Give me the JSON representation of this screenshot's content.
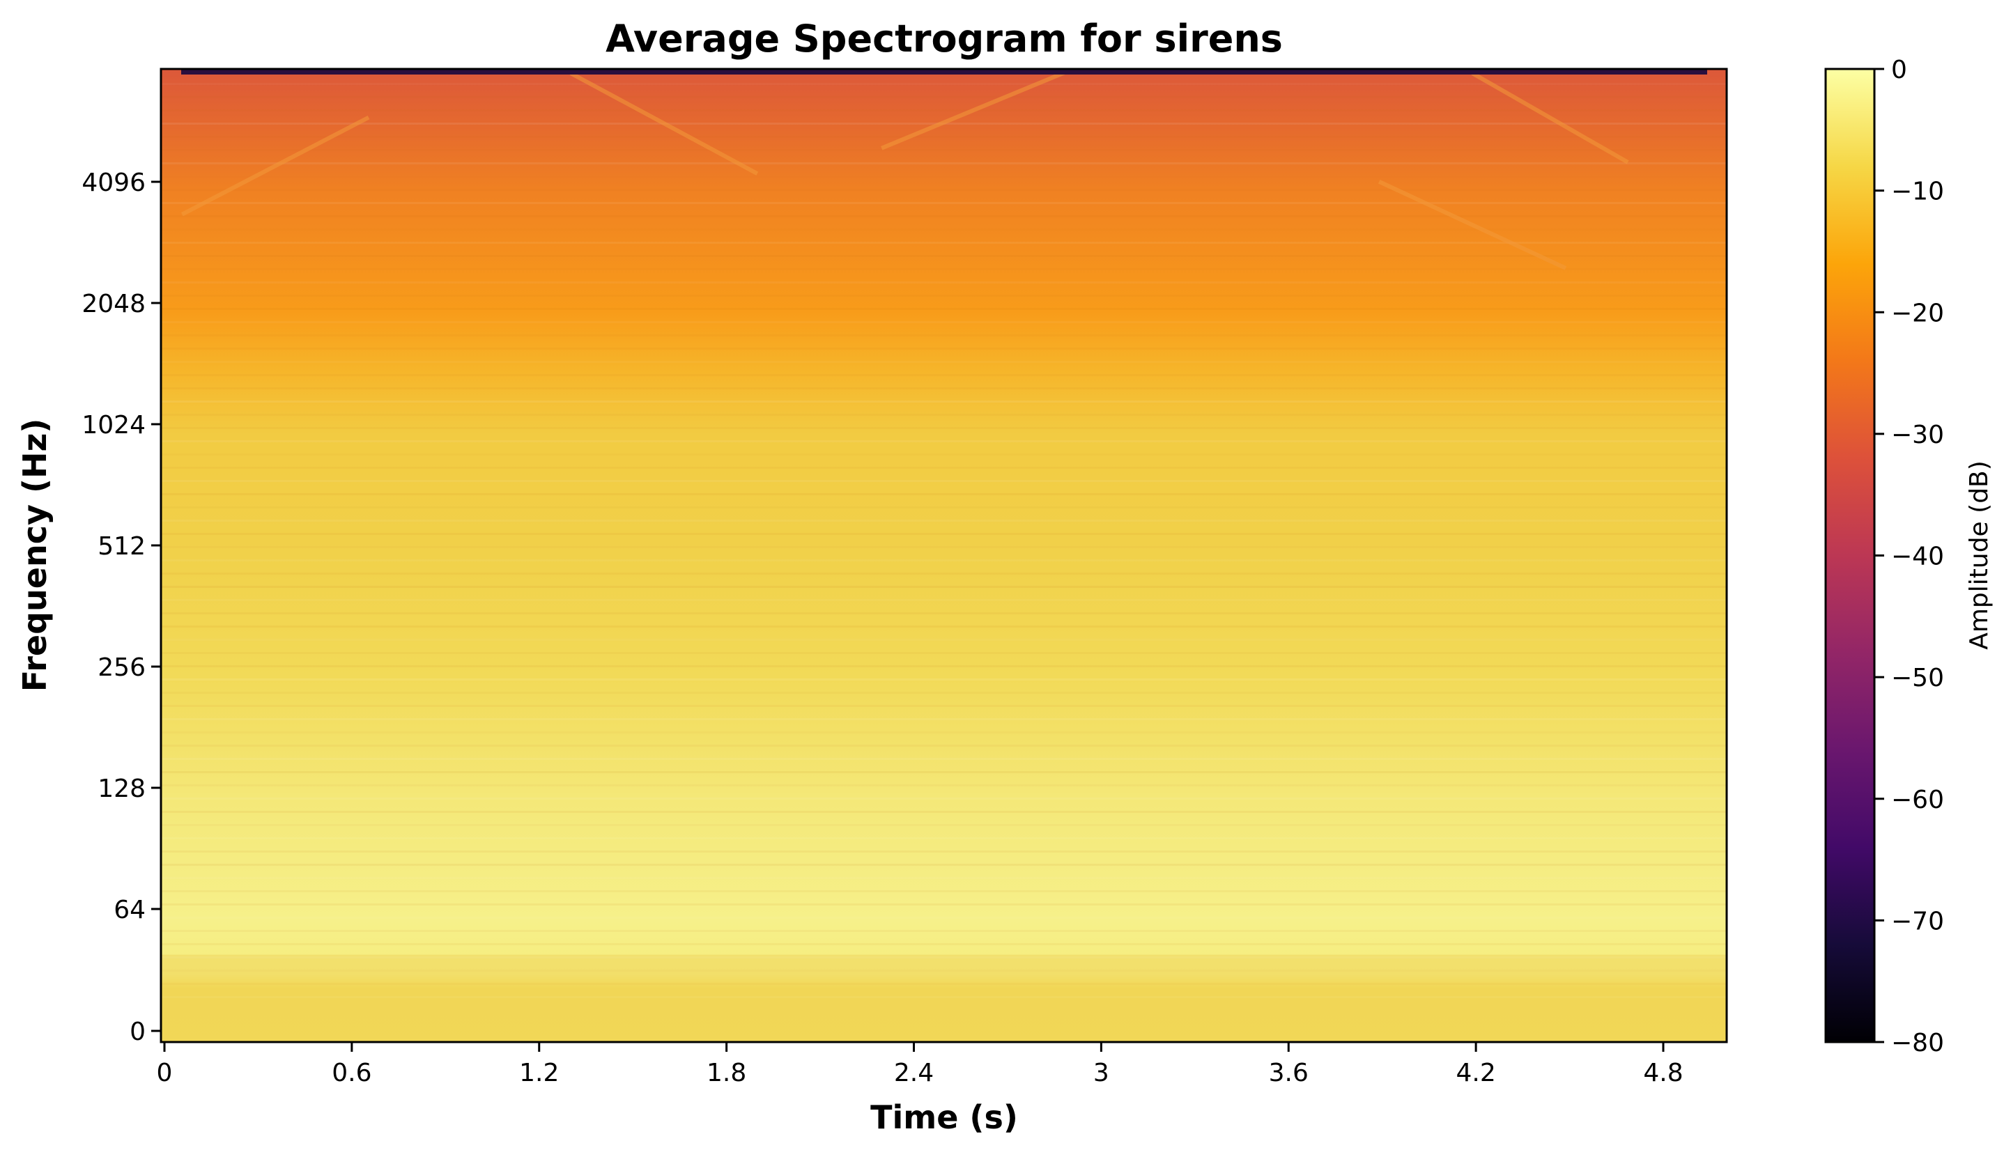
{
  "chart_data": {
    "type": "heatmap",
    "title": "Average Spectrogram for sirens",
    "xlabel": "Time (s)",
    "ylabel": "Frequency (Hz)",
    "xlim": [
      0,
      5.0
    ],
    "x_ticks": [
      0,
      0.6,
      1.2,
      1.8,
      2.4,
      3,
      3.6,
      4.2,
      4.8
    ],
    "x_tick_labels": [
      "0",
      "0.6",
      "1.2",
      "1.8",
      "2.4",
      "3",
      "3.6",
      "4.2",
      "4.8"
    ],
    "y_scale": "log2-like (librosa log frequency)",
    "y_ticks": [
      0,
      64,
      128,
      256,
      512,
      1024,
      2048,
      4096
    ],
    "y_tick_labels": [
      "0",
      "64",
      "128",
      "256",
      "512",
      "1024",
      "2048",
      "4096"
    ],
    "y_top_hz": 8000,
    "colormap": "inferno",
    "colorbar": {
      "label": "Amplitude (dB)",
      "range": [
        -80,
        0
      ],
      "ticks": [
        0,
        -10,
        -20,
        -30,
        -40,
        -50,
        -60,
        -70,
        -80
      ],
      "tick_labels": [
        "0",
        "−10",
        "−20",
        "−30",
        "−40",
        "−50",
        "−60",
        "−70",
        "−80"
      ]
    },
    "amplitude_profile_db": [
      {
        "freq_hz": 0,
        "db": -5
      },
      {
        "freq_hz": 32,
        "db": -5
      },
      {
        "freq_hz": 40,
        "db": -3
      },
      {
        "freq_hz": 64,
        "db": -2
      },
      {
        "freq_hz": 128,
        "db": -3
      },
      {
        "freq_hz": 256,
        "db": -6
      },
      {
        "freq_hz": 512,
        "db": -8
      },
      {
        "freq_hz": 1024,
        "db": -9
      },
      {
        "freq_hz": 1500,
        "db": -12
      },
      {
        "freq_hz": 2048,
        "db": -18
      },
      {
        "freq_hz": 4096,
        "db": -24
      },
      {
        "freq_hz": 6000,
        "db": -31
      },
      {
        "freq_hz": 8000,
        "db": -36
      }
    ],
    "siren_sweeps": [
      {
        "points": [
          [
            0.05,
            3400
          ],
          [
            0.65,
            6000
          ]
        ]
      },
      {
        "points": [
          [
            1.3,
            7800
          ],
          [
            1.9,
            4300
          ]
        ]
      },
      {
        "points": [
          [
            2.3,
            5000
          ],
          [
            2.9,
            7900
          ]
        ]
      },
      {
        "points": [
          [
            3.9,
            4100
          ],
          [
            4.5,
            2500
          ]
        ]
      },
      {
        "points": [
          [
            4.2,
            7800
          ],
          [
            4.7,
            4600
          ]
        ]
      }
    ]
  }
}
